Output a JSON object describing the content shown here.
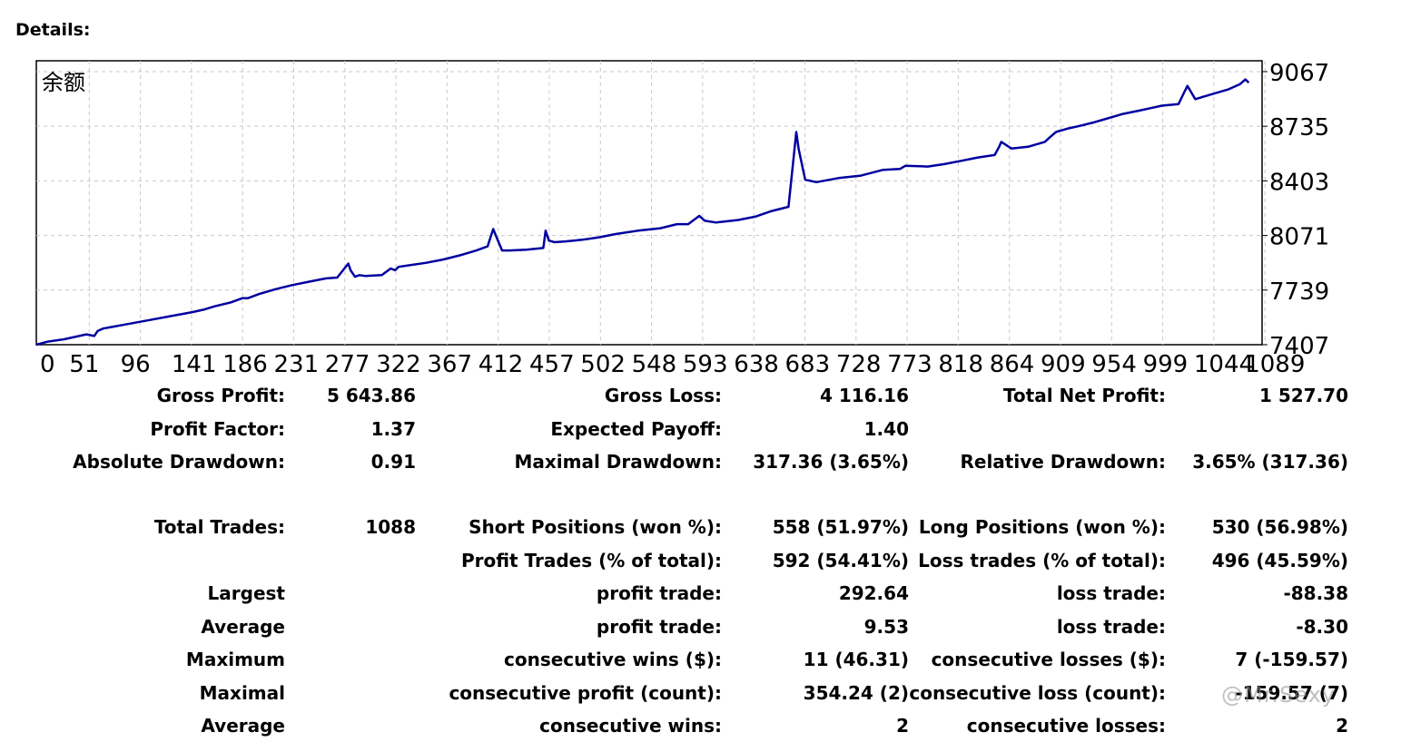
{
  "header": {
    "title": "Details:"
  },
  "chart_data": {
    "type": "line",
    "title": "余额",
    "series": [
      {
        "name": "余额",
        "color": "#0000a0",
        "x": [
          0,
          10,
          25,
          45,
          52,
          55,
          60,
          80,
          100,
          120,
          140,
          150,
          160,
          175,
          185,
          190,
          200,
          215,
          230,
          245,
          260,
          270,
          280,
          282,
          286,
          290,
          295,
          310,
          318,
          322,
          325,
          335,
          350,
          365,
          380,
          395,
          405,
          410,
          413,
          418,
          425,
          440,
          455,
          457,
          460,
          465,
          475,
          490,
          505,
          520,
          540,
          560,
          575,
          585,
          595,
          600,
          610,
          630,
          645,
          660,
          675,
          682,
          684,
          690,
          700,
          720,
          740,
          760,
          775,
          780,
          800,
          815,
          830,
          845,
          860,
          864,
          866,
          875,
          890,
          905,
          909,
          915,
          925,
          935,
          950,
          960,
          975,
          990,
          1010,
          1025,
          1030,
          1033,
          1040,
          1055,
          1070,
          1080,
          1085,
          1088
        ],
        "y": [
          7407,
          7425,
          7440,
          7470,
          7460,
          7490,
          7505,
          7530,
          7555,
          7580,
          7605,
          7620,
          7640,
          7665,
          7690,
          7690,
          7715,
          7745,
          7770,
          7790,
          7810,
          7815,
          7900,
          7860,
          7820,
          7830,
          7825,
          7830,
          7870,
          7860,
          7880,
          7890,
          7905,
          7925,
          7950,
          7980,
          8005,
          8110,
          8060,
          7980,
          7980,
          7985,
          7995,
          8100,
          8040,
          8030,
          8035,
          8045,
          8060,
          8080,
          8100,
          8115,
          8140,
          8140,
          8190,
          8160,
          8150,
          8165,
          8185,
          8220,
          8245,
          8700,
          8600,
          8410,
          8395,
          8420,
          8435,
          8470,
          8475,
          8495,
          8490,
          8505,
          8525,
          8545,
          8560,
          8610,
          8640,
          8600,
          8610,
          8640,
          8665,
          8700,
          8720,
          8735,
          8760,
          8780,
          8810,
          8830,
          8860,
          8870,
          8940,
          8980,
          8900,
          8930,
          8960,
          8990,
          9020,
          9000
        ]
      }
    ],
    "x_tick_labels": [
      "0",
      "51",
      "96",
      "141",
      "186",
      "231",
      "277",
      "322",
      "367",
      "412",
      "457",
      "502",
      "548",
      "593",
      "638",
      "683",
      "728",
      "773",
      "818",
      "864",
      "909",
      "954",
      "999",
      "1044",
      "1089"
    ],
    "y_tick_labels": [
      "9067",
      "8735",
      "8403",
      "8071",
      "7739",
      "7407"
    ],
    "xlim": [
      0,
      1100
    ],
    "ylim": [
      7407,
      9133
    ],
    "grid": true
  },
  "stats": {
    "gross_profit_label": "Gross Profit:",
    "gross_profit": "5 643.86",
    "gross_loss_label": "Gross Loss:",
    "gross_loss": "4 116.16",
    "total_net_profit_label": "Total Net Profit:",
    "total_net_profit": "1 527.70",
    "profit_factor_label": "Profit Factor:",
    "profit_factor": "1.37",
    "expected_payoff_label": "Expected Payoff:",
    "expected_payoff": "1.40",
    "absolute_drawdown_label": "Absolute Drawdown:",
    "absolute_drawdown": "0.91",
    "maximal_drawdown_label": "Maximal Drawdown:",
    "maximal_drawdown": "317.36 (3.65%)",
    "relative_drawdown_label": "Relative Drawdown:",
    "relative_drawdown": "3.65% (317.36)",
    "total_trades_label": "Total Trades:",
    "total_trades": "1088",
    "short_positions_label": "Short Positions (won %):",
    "short_positions": "558 (51.97%)",
    "long_positions_label": "Long Positions (won %):",
    "long_positions": "530 (56.98%)",
    "profit_trades_label": "Profit Trades (% of total):",
    "profit_trades": "592 (54.41%)",
    "loss_trades_label": "Loss trades (% of total):",
    "loss_trades": "496 (45.59%)",
    "largest_label": "Largest",
    "largest_profit_label": "profit trade:",
    "largest_profit": "292.64",
    "largest_loss_label": "loss trade:",
    "largest_loss": "-88.38",
    "average_label": "Average",
    "average_profit_label": "profit trade:",
    "average_profit": "9.53",
    "average_loss_label": "loss trade:",
    "average_loss": "-8.30",
    "maximum_label": "Maximum",
    "max_consec_wins_label": "consecutive wins ($):",
    "max_consec_wins": "11 (46.31)",
    "max_consec_losses_label": "consecutive losses ($):",
    "max_consec_losses": "7 (-159.57)",
    "maximal_label": "Maximal",
    "maximal_consec_profit_label": "consecutive profit (count):",
    "maximal_consec_profit": "354.24 (2)",
    "maximal_consec_loss_label": "consecutive loss (count):",
    "maximal_consec_loss": "-159.57 (7)",
    "average2_label": "Average",
    "avg_consec_wins_label": "consecutive wins:",
    "avg_consec_wins": "2",
    "avg_consec_losses_label": "consecutive losses:",
    "avg_consec_losses": "2"
  },
  "watermark": {
    "text": "@Mr.Sexy"
  }
}
